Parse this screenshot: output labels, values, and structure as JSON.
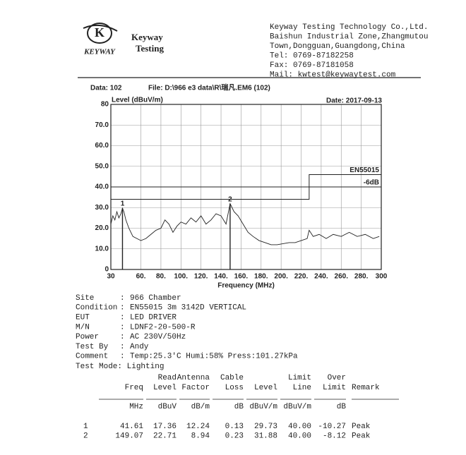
{
  "header": {
    "logo": "KEYWAY",
    "brand": [
      "Keyway",
      "Testing"
    ],
    "company_lines": [
      "Keyway Testing Technology Co.,Ltd.",
      "Baishun Industrial Zone,Zhangmutou",
      "Town,Dongguan,Guangdong,China",
      "Tel: 0769-87182258",
      "Fax: 0769-87181058",
      "Mail: kwtest@keywaytest.com"
    ]
  },
  "chart_data": {
    "type": "line",
    "data_no": "Data: 102",
    "file": "File: D:\\966 e3 data\\R\\瑞凡.EM6  (102)",
    "date": "Date: 2017-09-13",
    "y_label": "Level (dBuV/m)",
    "x_label": "Frequency (MHz)",
    "xlim": [
      30,
      300
    ],
    "ylim": [
      0,
      80
    ],
    "xticks": [
      30,
      {
        "value": 60,
        "label": "60."
      },
      {
        "value": 80,
        "label": "80."
      },
      {
        "value": 100,
        "label": "100."
      },
      {
        "value": 120,
        "label": "120."
      },
      {
        "value": 140,
        "label": "140."
      },
      {
        "value": 160,
        "label": "160."
      },
      {
        "value": 180,
        "label": "180."
      },
      {
        "value": 200,
        "label": "200."
      },
      {
        "value": 220,
        "label": "220."
      },
      {
        "value": 240,
        "label": "240."
      },
      {
        "value": 260,
        "label": "260."
      },
      {
        "value": 280,
        "label": "280."
      },
      300
    ],
    "yticks": [
      0,
      {
        "value": 10,
        "label": "10.0"
      },
      {
        "value": 20,
        "label": "20.0"
      },
      {
        "value": 30,
        "label": "30.0"
      },
      {
        "value": 40,
        "label": "40.0"
      },
      {
        "value": 50,
        "label": "50.0"
      },
      {
        "value": 60,
        "label": "60.0"
      },
      {
        "value": 70,
        "label": "70.0"
      },
      80
    ],
    "grid": true,
    "series": [
      {
        "color": "#222222",
        "x": [
          30,
          32,
          34,
          36,
          38,
          40,
          41.61,
          43,
          45,
          48,
          52,
          56,
          60,
          65,
          70,
          75,
          80,
          84,
          88,
          92,
          96,
          100,
          105,
          110,
          115,
          120,
          125,
          130,
          135,
          140,
          145,
          149.07,
          153,
          157,
          162,
          167,
          172,
          178,
          184,
          190,
          196,
          202,
          208,
          214,
          220,
          226,
          228,
          232,
          238,
          245,
          252,
          260,
          268,
          276,
          284,
          292,
          298
        ],
        "values": [
          22,
          26,
          24,
          28,
          25,
          27,
          29.7,
          28,
          24,
          20,
          16,
          15,
          14,
          15,
          17,
          19,
          20,
          24,
          22,
          18,
          21,
          23,
          22,
          25,
          23,
          26,
          22,
          24,
          27,
          26,
          22,
          31.9,
          28,
          26,
          22,
          18,
          16,
          14,
          13,
          12,
          12,
          12.5,
          13,
          13,
          14,
          15,
          19,
          16,
          17,
          15,
          17,
          16,
          18,
          16,
          17,
          15,
          16
        ]
      },
      {
        "name": "EN55015",
        "color": "#222222",
        "x": [
          30,
          228,
          228,
          300
        ],
        "values": [
          40,
          40,
          46,
          46
        ]
      },
      {
        "name": "-6dB",
        "color": "#222222",
        "x": [
          30,
          228,
          228,
          300
        ],
        "values": [
          34,
          34,
          40,
          40
        ]
      }
    ],
    "markers": {
      "labels": [
        "1",
        "2"
      ],
      "x": [
        41.61,
        149.07
      ],
      "values": [
        29.73,
        31.88
      ]
    }
  },
  "info": {
    "rows": [
      [
        "Site",
        "966 Chamber"
      ],
      [
        "Condition",
        "EN55015 3m 3142D VERTICAL"
      ],
      [
        "EUT",
        "LED DRIVER"
      ],
      [
        "M/N",
        "LDNF2-20-500-R"
      ],
      [
        "Power",
        "AC  230V/50Hz"
      ],
      [
        "Test By",
        "Andy"
      ],
      [
        "Comment",
        "Temp:25.3'C    Humi:58%    Press:101.27kPa"
      ]
    ],
    "test_mode": "Test Mode: Lighting"
  },
  "table": {
    "header_top": [
      "",
      "Read",
      "Antenna",
      "Cable",
      "",
      "Limit",
      "Over",
      ""
    ],
    "header": [
      "Freq",
      "Level",
      "Factor",
      "Loss",
      "Level",
      "Line",
      "Limit",
      "Remark"
    ],
    "units": [
      "MHz",
      "dBuV",
      "dB/m",
      "dB",
      "dBuV/m",
      "dBuV/m",
      "dB",
      ""
    ],
    "rows": [
      [
        "1",
        "41.61",
        "17.36",
        "12.24",
        "0.13",
        "29.73",
        "40.00",
        "-10.27",
        "Peak"
      ],
      [
        "2",
        "149.07",
        "22.71",
        "8.94",
        "0.23",
        "31.88",
        "40.00",
        "-8.12",
        "Peak"
      ]
    ]
  }
}
